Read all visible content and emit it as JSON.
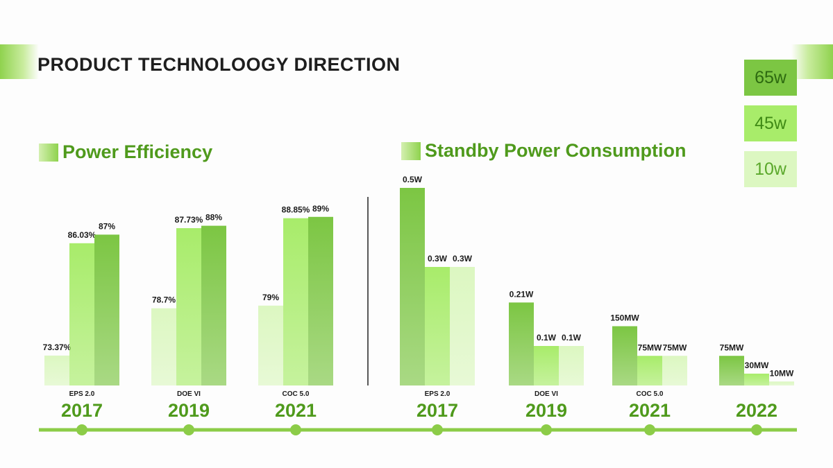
{
  "page": {
    "title": "PRODUCT TECHNOLOOGY DIRECTION"
  },
  "legend": [
    {
      "label": "65w",
      "color": "#7cc643",
      "text_color": "#2d6a10"
    },
    {
      "label": "45w",
      "color": "#a8ec6a",
      "text_color": "#3f8a15"
    },
    {
      "label": "10w",
      "color": "#dcf7c1",
      "text_color": "#5aa82a"
    }
  ],
  "colors": {
    "accent": "#4f9a1c",
    "timeline": "#8ccc48",
    "divider": "#222222"
  },
  "chart_data": [
    {
      "type": "bar",
      "title": "Power Efficiency",
      "categories": [
        "EPS 2.0",
        "DOE VI",
        "COC 5.0"
      ],
      "years": [
        "2017",
        "2019",
        "2021"
      ],
      "ylim": [
        70,
        90
      ],
      "series": [
        {
          "name": "10w",
          "values": [
            73.37,
            78.7,
            79
          ],
          "labels": [
            "73.37%",
            "78.7%",
            "79%"
          ]
        },
        {
          "name": "45w",
          "values": [
            86.03,
            87.73,
            88.85
          ],
          "labels": [
            "86.03%",
            "87.73%",
            "88.85%"
          ]
        },
        {
          "name": "65w",
          "values": [
            87,
            88,
            89
          ],
          "labels": [
            "87%",
            "88%",
            "89%"
          ]
        }
      ],
      "legend": "top-right"
    },
    {
      "type": "bar",
      "title": "Standby Power Consumption",
      "categories": [
        "EPS 2.0",
        "DOE VI",
        "COC 5.0",
        ""
      ],
      "years": [
        "2017",
        "2019",
        "2021",
        "2022"
      ],
      "ylim": [
        0,
        0.5
      ],
      "unit": "W",
      "series": [
        {
          "name": "65w",
          "values": [
            0.5,
            0.21,
            0.15,
            0.075
          ],
          "labels": [
            "0.5W",
            "0.21W",
            "150MW",
            "75MW"
          ]
        },
        {
          "name": "45w",
          "values": [
            0.3,
            0.1,
            0.075,
            0.03
          ],
          "labels": [
            "0.3W",
            "0.1W",
            "75MW",
            "30MW"
          ]
        },
        {
          "name": "10w",
          "values": [
            0.3,
            0.1,
            0.075,
            0.01
          ],
          "labels": [
            "0.3W",
            "0.1W",
            "75MW",
            "10MW"
          ]
        }
      ],
      "legend": "top-right"
    }
  ]
}
